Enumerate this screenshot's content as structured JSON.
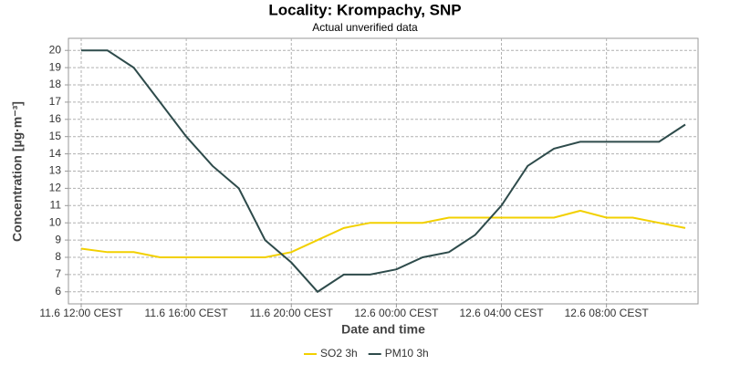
{
  "chart_data": {
    "type": "line",
    "title": "Locality: Krompachy, SNP",
    "subtitle": "Actual unverified data",
    "x_label": "Date and time",
    "y_label": "Concentration [µg·m⁻³]",
    "categories": [
      "11.6 12:00 CEST",
      null,
      null,
      null,
      "11.6 16:00 CEST",
      null,
      null,
      null,
      "11.6 20:00 CEST",
      null,
      null,
      null,
      "12.6 00:00 CEST",
      null,
      null,
      null,
      "12.6 04:00 CEST",
      null,
      null,
      null,
      "12.6 08:00 CEST",
      null,
      null,
      null
    ],
    "series": [
      {
        "name": "SO2 3h",
        "color": "#f2d000",
        "values": [
          8.5,
          8.3,
          8.3,
          8,
          8,
          8,
          8,
          8,
          8.3,
          9,
          9.7,
          10,
          10,
          10,
          10.3,
          10.3,
          10.3,
          10.3,
          10.3,
          10.7,
          10.3,
          10.3,
          10,
          9.7
        ]
      },
      {
        "name": "PM10 3h",
        "color": "#2e4b4b",
        "values": [
          20,
          20,
          19,
          17,
          15,
          13.3,
          12,
          9,
          7.7,
          6,
          7,
          7,
          7.3,
          8,
          8.3,
          9.3,
          11,
          13.3,
          14.3,
          14.7,
          14.7,
          14.7,
          14.7,
          15.7
        ]
      }
    ],
    "ylim": [
      5.3,
      20.7
    ],
    "yticks": [
      6,
      7,
      8,
      9,
      10,
      11,
      12,
      13,
      14,
      15,
      16,
      17,
      18,
      19,
      20
    ],
    "grid": true,
    "legend": "bottom"
  }
}
